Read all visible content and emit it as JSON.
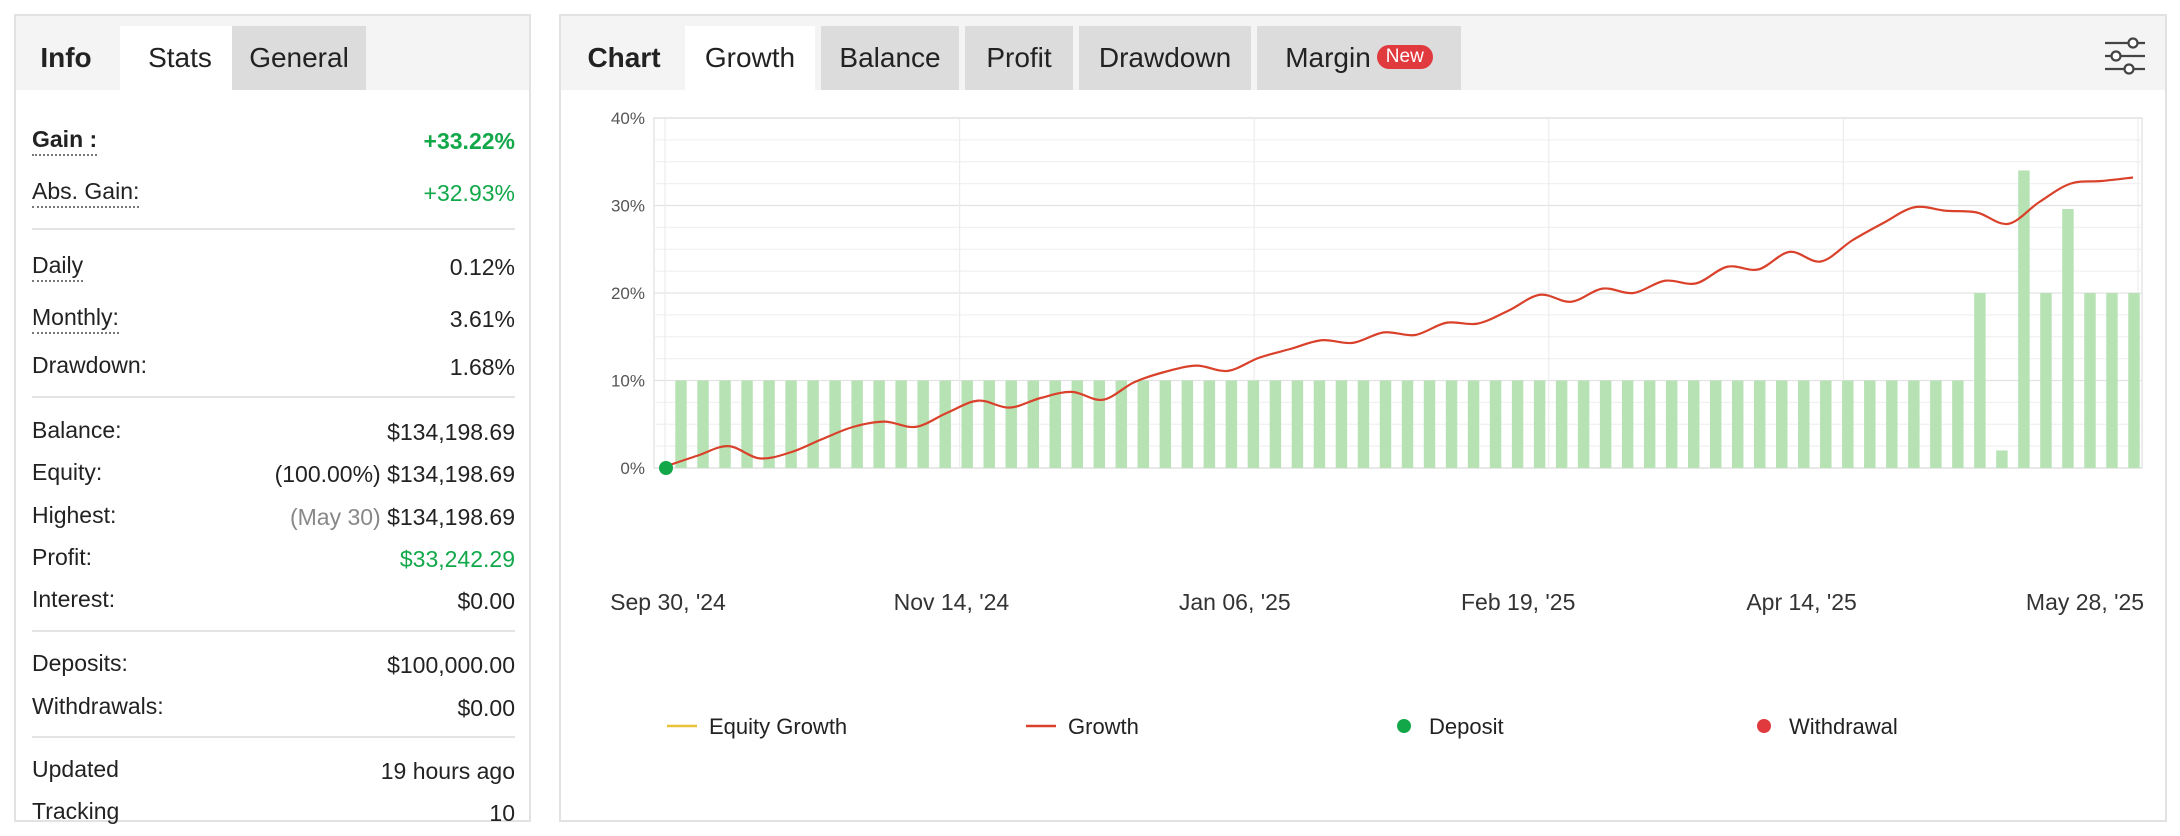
{
  "left_panel": {
    "tabs": [
      "Info",
      "Stats",
      "General"
    ],
    "active_tab": "Stats",
    "rows": [
      {
        "label": "Gain :",
        "value": "+33.22%"
      },
      {
        "label": "Abs. Gain:",
        "value": "+32.93%"
      },
      {
        "label": "Daily",
        "value": "0.12%"
      },
      {
        "label": "Monthly:",
        "value": "3.61%"
      },
      {
        "label": "Drawdown:",
        "value": "1.68%"
      },
      {
        "label": "Balance:",
        "value": "$134,198.69"
      },
      {
        "label": "Equity:",
        "note": "(100.00%)",
        "value": "$134,198.69"
      },
      {
        "label": "Highest:",
        "note": "(May 30)",
        "value": "$134,198.69"
      },
      {
        "label": "Profit:",
        "value": "$33,242.29"
      },
      {
        "label": "Interest:",
        "value": "$0.00"
      },
      {
        "label": "Deposits:",
        "value": "$100,000.00"
      },
      {
        "label": "Withdrawals:",
        "value": "$0.00"
      },
      {
        "label": "Updated",
        "value": "19 hours ago"
      },
      {
        "label": "Tracking",
        "value": "10"
      }
    ]
  },
  "right_panel": {
    "tabs": [
      "Chart",
      "Growth",
      "Balance",
      "Profit",
      "Drawdown",
      "Margin"
    ],
    "active_tab": "Growth",
    "margin_badge": "New",
    "settings_icon": "sliders-icon"
  },
  "colors": {
    "growth_line": "#d9412b",
    "equity_line": "#e8c23a",
    "bars": "#b6e2b4",
    "deposit": "#12a84a",
    "withdrawal": "#e0393e",
    "positive": "#12a84a"
  },
  "chart_data": {
    "type": "line",
    "y_ticks": [
      "0%",
      "10%",
      "20%",
      "30%",
      "40%"
    ],
    "ylim": [
      0,
      40
    ],
    "x_ticks": [
      "Sep 30, '24",
      "Nov 14, '24",
      "Jan 06, '25",
      "Feb 19, '25",
      "Apr 14, '25",
      "May 28, '25"
    ],
    "grid": true,
    "legend_position": "bottom",
    "legend": [
      "Equity Growth",
      "Growth",
      "Deposit",
      "Withdrawal"
    ],
    "bars": [
      10,
      10,
      10,
      10,
      10,
      10,
      10,
      10,
      10,
      10,
      10,
      10,
      10,
      10,
      10,
      10,
      10,
      10,
      10,
      10,
      10,
      10,
      10,
      10,
      10,
      10,
      10,
      10,
      10,
      10,
      10,
      10,
      10,
      10,
      10,
      10,
      10,
      10,
      10,
      10,
      10,
      10,
      10,
      10,
      10,
      10,
      10,
      10,
      10,
      10,
      10,
      10,
      10,
      10,
      10,
      10,
      10,
      10,
      10,
      20,
      2,
      34,
      20,
      29.6,
      20,
      20,
      20
    ],
    "series": [
      {
        "name": "Growth",
        "values": [
          0.2,
          1.4,
          2.5,
          1.1,
          1.8,
          3.3,
          4.7,
          5.3,
          4.7,
          6.3,
          7.7,
          6.9,
          8.0,
          8.7,
          7.8,
          9.8,
          11.0,
          11.7,
          11.1,
          12.6,
          13.6,
          14.6,
          14.3,
          15.5,
          15.2,
          16.6,
          16.5,
          18.0,
          19.8,
          19.0,
          20.5,
          20.0,
          21.4,
          21.1,
          23.0,
          22.7,
          24.7,
          23.6,
          26.0,
          28.0,
          29.8,
          29.4,
          29.2,
          27.9,
          30.4,
          32.5,
          32.8,
          33.2
        ]
      }
    ],
    "deposit_markers": [
      {
        "x": 0,
        "y": 0
      }
    ]
  }
}
